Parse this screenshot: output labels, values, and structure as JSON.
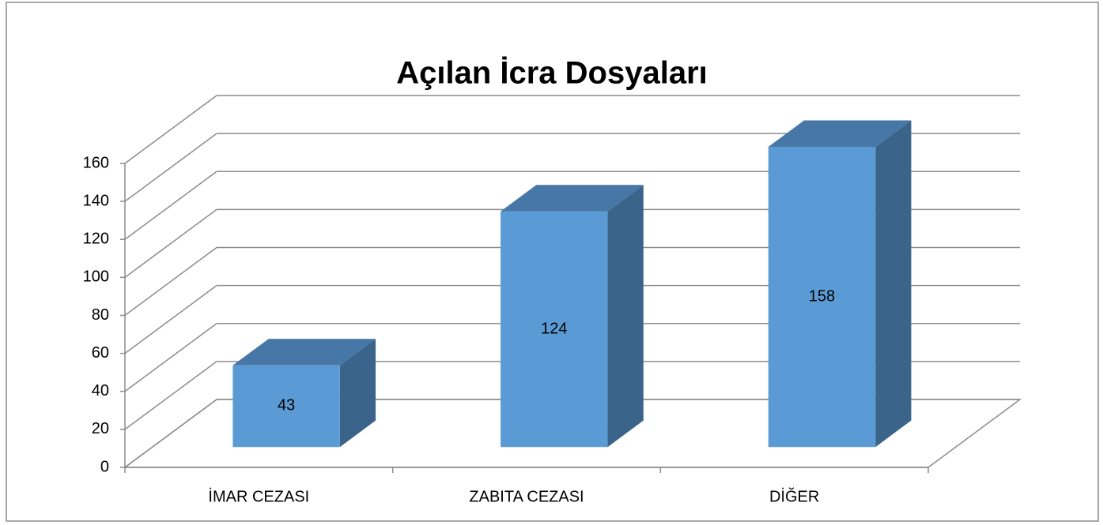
{
  "chart_data": {
    "type": "bar3d",
    "title": "Açılan İcra Dosyaları",
    "categories": [
      "İMAR CEZASI",
      "ZABITA CEZASI",
      "DİĞER"
    ],
    "values": [
      43,
      124,
      158
    ],
    "colors": {
      "front": "#5b9bd5",
      "top": "#4677a6",
      "side": "#3a6489"
    },
    "ylim": [
      0,
      160
    ],
    "yticks": [
      0,
      20,
      40,
      60,
      80,
      100,
      120,
      140,
      160
    ],
    "grid": true
  }
}
